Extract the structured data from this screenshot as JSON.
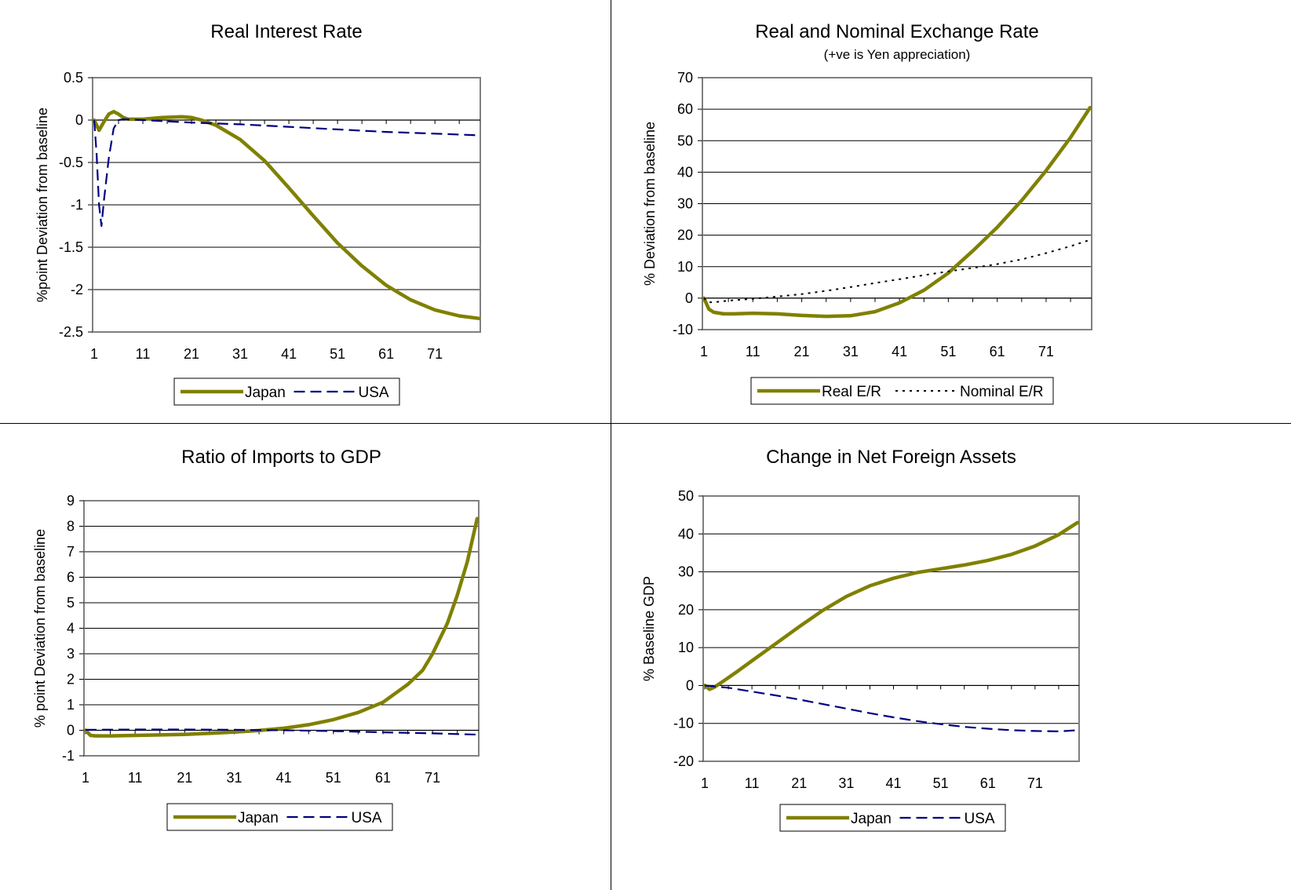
{
  "colors": {
    "japan": "#808000",
    "usa": "#000080",
    "nominal": "#000000",
    "plot_border": "#808080",
    "grid": "#000000"
  },
  "chart_data": [
    {
      "type": "line",
      "title": "Real Interest Rate",
      "subtitle": "",
      "xlabel": "",
      "ylabel": "%point  Deviation from baseline",
      "ylim": [
        -2.5,
        0.5
      ],
      "yticks": [
        0.5,
        0,
        -0.5,
        -1,
        -1.5,
        -2,
        -2.5
      ],
      "ytick_labels": [
        "0.5",
        "0",
        "-0.5",
        "-1",
        "-1.5",
        "-2",
        "-2.5"
      ],
      "xlim": [
        1,
        80
      ],
      "xticks": [
        1,
        11,
        21,
        31,
        41,
        51,
        61,
        71
      ],
      "xtick_labels": [
        "1",
        "11",
        "21",
        "31",
        "41",
        "51",
        "61",
        "71"
      ],
      "grid": true,
      "legend": "bottom",
      "series": [
        {
          "name": "Japan",
          "style": "solid",
          "x": [
            1,
            2,
            3,
            4,
            5,
            6,
            7,
            8,
            11,
            15,
            19,
            21,
            23,
            26,
            31,
            36,
            41,
            46,
            51,
            56,
            61,
            66,
            71,
            76,
            80
          ],
          "y": [
            0,
            -0.12,
            -0.02,
            0.07,
            0.1,
            0.07,
            0.03,
            0.01,
            0.01,
            0.03,
            0.04,
            0.03,
            0.0,
            -0.06,
            -0.23,
            -0.48,
            -0.8,
            -1.13,
            -1.45,
            -1.72,
            -1.95,
            -2.12,
            -2.24,
            -2.31,
            -2.34
          ]
        },
        {
          "name": "USA",
          "style": "dashed",
          "x": [
            1,
            1.5,
            2,
            2.5,
            3,
            4,
            5,
            6,
            7,
            11,
            21,
            31,
            41,
            51,
            61,
            71,
            80
          ],
          "y": [
            0,
            -0.4,
            -1.0,
            -1.25,
            -0.95,
            -0.45,
            -0.1,
            0.0,
            0.01,
            0.0,
            -0.03,
            -0.05,
            -0.08,
            -0.11,
            -0.14,
            -0.16,
            -0.18
          ]
        }
      ]
    },
    {
      "type": "line",
      "title": "Real and Nominal Exchange Rate",
      "subtitle": "(+ve is Yen appreciation)",
      "xlabel": "",
      "ylabel": "%  Deviation from baseline",
      "ylim": [
        -10,
        70
      ],
      "yticks": [
        70,
        60,
        50,
        40,
        30,
        20,
        10,
        0,
        -10
      ],
      "ytick_labels": [
        "70",
        "60",
        "50",
        "40",
        "30",
        "20",
        "10",
        "0",
        "-10"
      ],
      "xlim": [
        1,
        80
      ],
      "xticks": [
        1,
        11,
        21,
        31,
        41,
        51,
        61,
        71
      ],
      "xtick_labels": [
        "1",
        "11",
        "21",
        "31",
        "41",
        "51",
        "61",
        "71"
      ],
      "grid": true,
      "legend": "bottom",
      "series": [
        {
          "name": "Real E/R",
          "style": "solid",
          "x": [
            1,
            2,
            3,
            5,
            7,
            11,
            16,
            21,
            26,
            31,
            36,
            41,
            46,
            51,
            56,
            61,
            66,
            71,
            76,
            80
          ],
          "y": [
            0,
            -3.5,
            -4.5,
            -5.0,
            -5.0,
            -4.8,
            -5.0,
            -5.5,
            -5.8,
            -5.6,
            -4.3,
            -1.5,
            2.5,
            8.0,
            15.0,
            22.5,
            31.0,
            40.5,
            51.0,
            60.5
          ]
        },
        {
          "name": "Nominal E/R",
          "style": "dotted",
          "x": [
            1,
            2,
            3,
            6,
            11,
            16,
            21,
            26,
            31,
            36,
            41,
            46,
            51,
            56,
            61,
            66,
            71,
            76,
            80
          ],
          "y": [
            0,
            -1.3,
            -1.3,
            -0.8,
            -0.2,
            0.5,
            1.3,
            2.3,
            3.5,
            4.8,
            6.0,
            7.3,
            8.5,
            9.6,
            10.8,
            12.3,
            14.3,
            16.5,
            18.5
          ]
        }
      ]
    },
    {
      "type": "line",
      "title": "Ratio of Imports to GDP",
      "subtitle": "",
      "xlabel": "",
      "ylabel": "% point  Deviation from baseline",
      "ylim": [
        -1,
        9
      ],
      "yticks": [
        9,
        8,
        7,
        6,
        5,
        4,
        3,
        2,
        1,
        0,
        -1
      ],
      "ytick_labels": [
        "9",
        "8",
        "7",
        "6",
        "5",
        "4",
        "3",
        "2",
        "1",
        "0",
        "-1"
      ],
      "xlim": [
        1,
        80
      ],
      "xticks": [
        1,
        11,
        21,
        31,
        41,
        51,
        61,
        71
      ],
      "xtick_labels": [
        "1",
        "11",
        "21",
        "31",
        "41",
        "51",
        "61",
        "71"
      ],
      "grid": true,
      "legend": "bottom",
      "series": [
        {
          "name": "Japan",
          "style": "solid",
          "x": [
            1,
            2,
            3,
            6,
            11,
            16,
            21,
            26,
            31,
            36,
            41,
            46,
            51,
            56,
            61,
            66,
            69,
            71,
            74,
            76,
            78,
            80
          ],
          "y": [
            0,
            -0.2,
            -0.22,
            -0.22,
            -0.2,
            -0.18,
            -0.16,
            -0.12,
            -0.07,
            -0.01,
            0.08,
            0.22,
            0.42,
            0.7,
            1.1,
            1.8,
            2.35,
            3.0,
            4.2,
            5.3,
            6.6,
            8.3
          ]
        },
        {
          "name": "USA",
          "style": "dashed",
          "x": [
            1,
            11,
            21,
            31,
            41,
            51,
            61,
            71,
            80
          ],
          "y": [
            0.02,
            0.03,
            0.03,
            0.02,
            0.0,
            -0.03,
            -0.08,
            -0.12,
            -0.17
          ]
        }
      ]
    },
    {
      "type": "line",
      "title": "Change in Net Foreign Assets",
      "subtitle": "",
      "xlabel": "",
      "ylabel": "% Baseline GDP",
      "ylim": [
        -20,
        50
      ],
      "yticks": [
        50,
        40,
        30,
        20,
        10,
        0,
        -10,
        -20
      ],
      "ytick_labels": [
        "50",
        "40",
        "30",
        "20",
        "10",
        "0",
        "-10",
        "-20"
      ],
      "xlim": [
        1,
        80
      ],
      "xticks": [
        1,
        11,
        21,
        31,
        41,
        51,
        61,
        71
      ],
      "xtick_labels": [
        "1",
        "11",
        "21",
        "31",
        "41",
        "51",
        "61",
        "71"
      ],
      "grid": true,
      "legend": "bottom",
      "series": [
        {
          "name": "Japan",
          "style": "solid",
          "x": [
            1,
            2,
            3,
            5,
            8,
            11,
            16,
            21,
            26,
            31,
            36,
            41,
            46,
            51,
            56,
            61,
            66,
            71,
            76,
            80
          ],
          "y": [
            0,
            -1.0,
            -0.5,
            1.2,
            3.8,
            6.5,
            11.0,
            15.5,
            19.8,
            23.5,
            26.3,
            28.3,
            29.8,
            30.8,
            31.8,
            33.0,
            34.6,
            36.8,
            39.8,
            43.0
          ]
        },
        {
          "name": "USA",
          "style": "dashed",
          "x": [
            1,
            6,
            11,
            16,
            21,
            26,
            31,
            36,
            41,
            46,
            51,
            56,
            61,
            66,
            71,
            76,
            80
          ],
          "y": [
            0,
            -0.6,
            -1.6,
            -2.6,
            -3.7,
            -4.9,
            -6.1,
            -7.3,
            -8.4,
            -9.4,
            -10.2,
            -10.9,
            -11.4,
            -11.8,
            -12.0,
            -12.1,
            -11.8
          ]
        }
      ]
    }
  ]
}
